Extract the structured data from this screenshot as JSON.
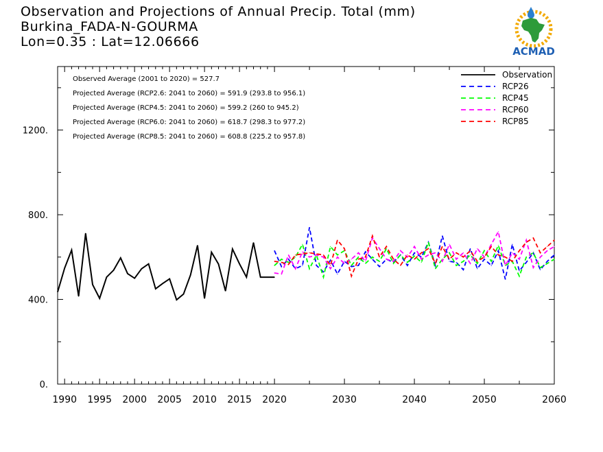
{
  "header": {
    "title": "Observation and Projections of Annual Precip. Total (mm)",
    "location": "Burkina_FADA-N-GOURMA",
    "coords": "Lon=0.35 : Lat=12.06666"
  },
  "logo": {
    "text": "ACMAD",
    "icon": "acmad-africa-logo-icon"
  },
  "colors": {
    "observation": "#000000",
    "RCP26": "#0000ff",
    "RCP45": "#00ff00",
    "RCP60": "#ff00ff",
    "RCP85": "#ff0000"
  },
  "chart_data": {
    "type": "line",
    "title": "Observation and Projections of Annual Precip. Total (mm)",
    "xlabel": "",
    "ylabel": "",
    "xlim": [
      1989,
      2060
    ],
    "ylim": [
      0,
      1500
    ],
    "x_ticks": [
      1990,
      1995,
      2000,
      2005,
      2010,
      2015,
      2020,
      2030,
      2040,
      2050,
      2060
    ],
    "y_ticks": [
      0,
      400,
      800,
      1200
    ],
    "y_tick_labels": [
      "0.",
      "400.",
      "800.",
      "1200."
    ],
    "legend_position": "top-right",
    "annotations": [
      "Observed Average (2001 to 2020) = 527.7",
      "Projected Average (RCP2.6: 2041 to 2060) = 591.9 (293.8 to 956.1)",
      "Projected Average (RCP4.5: 2041 to 2060) = 599.2 (260 to 945.2)",
      "Projected Average (RCP6.0: 2041 to 2060) = 618.7 (298.3 to 977.2)",
      "Projected Average (RCP8.5: 2041 to 2060) = 608.8 (225.2 to 957.8)"
    ],
    "series": [
      {
        "name": "Observation",
        "style": "solid",
        "x": [
          1989,
          1990,
          1991,
          1992,
          1993,
          1994,
          1995,
          1996,
          1997,
          1998,
          1999,
          2000,
          2001,
          2002,
          2003,
          2004,
          2005,
          2006,
          2007,
          2008,
          2009,
          2010,
          2011,
          2012,
          2013,
          2014,
          2015,
          2016,
          2017,
          2018,
          2019,
          2020
        ],
        "values": [
          435,
          548,
          633,
          415,
          712,
          470,
          405,
          505,
          538,
          596,
          522,
          500,
          545,
          568,
          450,
          475,
          497,
          398,
          425,
          515,
          655,
          405,
          623,
          567,
          440,
          638,
          568,
          505,
          668,
          505,
          505,
          505
        ]
      },
      {
        "name": "RCP26",
        "style": "dashed",
        "x": [
          2020,
          2021,
          2022,
          2023,
          2024,
          2025,
          2026,
          2027,
          2028,
          2029,
          2030,
          2031,
          2032,
          2033,
          2034,
          2035,
          2036,
          2037,
          2038,
          2039,
          2040,
          2041,
          2042,
          2043,
          2044,
          2045,
          2046,
          2047,
          2048,
          2049,
          2050,
          2051,
          2052,
          2053,
          2054,
          2055,
          2056,
          2057,
          2058,
          2059,
          2060
        ],
        "values": [
          630,
          555,
          590,
          545,
          560,
          740,
          560,
          530,
          585,
          520,
          580,
          555,
          560,
          625,
          590,
          555,
          590,
          575,
          610,
          560,
          620,
          600,
          670,
          560,
          700,
          580,
          575,
          540,
          640,
          545,
          590,
          560,
          630,
          495,
          660,
          535,
          575,
          620,
          540,
          580,
          610
        ]
      },
      {
        "name": "RCP45",
        "style": "dashed",
        "x": [
          2020,
          2021,
          2022,
          2023,
          2024,
          2025,
          2026,
          2027,
          2028,
          2029,
          2030,
          2031,
          2032,
          2033,
          2034,
          2035,
          2036,
          2037,
          2038,
          2039,
          2040,
          2041,
          2042,
          2043,
          2044,
          2045,
          2046,
          2047,
          2048,
          2049,
          2050,
          2051,
          2052,
          2053,
          2054,
          2055,
          2056,
          2057,
          2058,
          2059,
          2060
        ],
        "values": [
          560,
          590,
          575,
          600,
          660,
          545,
          610,
          505,
          650,
          610,
          630,
          560,
          600,
          570,
          600,
          580,
          640,
          570,
          610,
          575,
          605,
          575,
          670,
          545,
          590,
          620,
          560,
          580,
          610,
          570,
          630,
          580,
          655,
          560,
          580,
          510,
          600,
          620,
          550,
          570,
          590
        ]
      },
      {
        "name": "RCP60",
        "style": "dashed",
        "x": [
          2020,
          2021,
          2022,
          2023,
          2024,
          2025,
          2026,
          2027,
          2028,
          2029,
          2030,
          2031,
          2032,
          2033,
          2034,
          2035,
          2036,
          2037,
          2038,
          2039,
          2040,
          2041,
          2042,
          2043,
          2044,
          2045,
          2046,
          2047,
          2048,
          2049,
          2050,
          2051,
          2052,
          2053,
          2054,
          2055,
          2056,
          2057,
          2058,
          2059,
          2060
        ],
        "values": [
          525,
          520,
          610,
          545,
          625,
          600,
          610,
          600,
          545,
          600,
          570,
          590,
          620,
          580,
          690,
          640,
          590,
          580,
          630,
          600,
          650,
          590,
          610,
          620,
          580,
          660,
          590,
          620,
          570,
          640,
          600,
          660,
          720,
          560,
          620,
          590,
          680,
          550,
          600,
          630,
          650
        ]
      },
      {
        "name": "RCP85",
        "style": "dashed",
        "x": [
          2020,
          2021,
          2022,
          2023,
          2024,
          2025,
          2026,
          2027,
          2028,
          2029,
          2030,
          2031,
          2032,
          2033,
          2034,
          2035,
          2036,
          2037,
          2038,
          2039,
          2040,
          2041,
          2042,
          2043,
          2044,
          2045,
          2046,
          2047,
          2048,
          2049,
          2050,
          2051,
          2052,
          2053,
          2054,
          2055,
          2056,
          2057,
          2058,
          2059,
          2060
        ],
        "values": [
          580,
          575,
          565,
          610,
          615,
          620,
          615,
          610,
          560,
          680,
          640,
          510,
          590,
          600,
          700,
          600,
          650,
          590,
          560,
          610,
          590,
          620,
          640,
          570,
          650,
          590,
          620,
          600,
          630,
          580,
          600,
          650,
          610,
          600,
          580,
          630,
          670,
          690,
          620,
          650,
          680
        ]
      }
    ]
  }
}
